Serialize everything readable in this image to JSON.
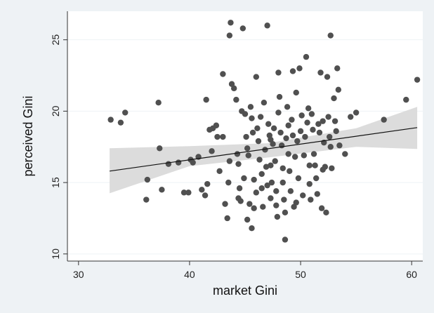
{
  "chart_data": {
    "type": "scatter",
    "xlabel": "market Gini",
    "ylabel": "perceived Gini",
    "xlim": [
      29,
      61
    ],
    "ylim": [
      9.5,
      27
    ],
    "x_ticks": [
      30,
      40,
      50,
      60
    ],
    "y_ticks": [
      10,
      15,
      20,
      25
    ],
    "x_tick_labels": [
      "30",
      "40",
      "50",
      "60"
    ],
    "y_tick_labels": [
      "10",
      "15",
      "20",
      "25"
    ],
    "grid": true,
    "colors": {
      "points": "#505050",
      "fit_line": "#111111",
      "ci_band": "#dcdcdc",
      "frame_bg": "#eef2f5",
      "plot_bg": "#ffffff",
      "gridline": "#eef2f5"
    },
    "fit_line": {
      "x": [
        32.8,
        60.5
      ],
      "y": [
        15.8,
        18.85
      ]
    },
    "ci_band": {
      "x": [
        32.8,
        40,
        47,
        55,
        60.5
      ],
      "upper": [
        17.4,
        17.55,
        17.75,
        18.8,
        20.3
      ],
      "lower": [
        14.25,
        16.15,
        16.75,
        17.5,
        17.35
      ]
    },
    "points": [
      [
        32.9,
        19.4
      ],
      [
        33.8,
        19.2
      ],
      [
        34.2,
        19.9
      ],
      [
        36.2,
        15.2
      ],
      [
        36.1,
        13.8
      ],
      [
        37.2,
        20.6
      ],
      [
        37.3,
        17.4
      ],
      [
        37.5,
        14.5
      ],
      [
        38.1,
        16.3
      ],
      [
        39.0,
        16.4
      ],
      [
        39.5,
        14.3
      ],
      [
        39.9,
        14.3
      ],
      [
        40.1,
        16.6
      ],
      [
        40.3,
        16.4
      ],
      [
        40.8,
        16.8
      ],
      [
        41.1,
        14.5
      ],
      [
        41.4,
        14.1
      ],
      [
        41.6,
        14.9
      ],
      [
        41.5,
        20.8
      ],
      [
        41.8,
        18.7
      ],
      [
        42.1,
        18.8
      ],
      [
        42.0,
        17.2
      ],
      [
        42.4,
        19.0
      ],
      [
        42.5,
        18.2
      ],
      [
        42.7,
        15.8
      ],
      [
        43.0,
        22.6
      ],
      [
        43.2,
        13.5
      ],
      [
        43.4,
        12.5
      ],
      [
        43.5,
        15.0
      ],
      [
        43.6,
        16.5
      ],
      [
        43.6,
        25.3
      ],
      [
        43.7,
        26.2
      ],
      [
        43.8,
        21.9
      ],
      [
        44.0,
        21.6
      ],
      [
        44.2,
        20.8
      ],
      [
        44.3,
        17.0
      ],
      [
        44.4,
        16.3
      ],
      [
        44.5,
        14.6
      ],
      [
        44.6,
        13.7
      ],
      [
        44.7,
        20.0
      ],
      [
        44.8,
        25.8
      ],
      [
        44.9,
        15.3
      ],
      [
        45.0,
        19.8
      ],
      [
        45.1,
        18.2
      ],
      [
        45.2,
        17.4
      ],
      [
        45.3,
        16.9
      ],
      [
        45.4,
        13.5
      ],
      [
        45.5,
        20.3
      ],
      [
        45.6,
        19.5
      ],
      [
        45.7,
        18.5
      ],
      [
        45.8,
        15.2
      ],
      [
        45.8,
        13.2
      ],
      [
        45.6,
        11.8
      ],
      [
        46.0,
        22.4
      ],
      [
        46.1,
        18.8
      ],
      [
        46.2,
        17.9
      ],
      [
        46.3,
        16.6
      ],
      [
        46.4,
        19.6
      ],
      [
        46.5,
        15.6
      ],
      [
        46.5,
        14.6
      ],
      [
        46.6,
        13.3
      ],
      [
        46.7,
        20.6
      ],
      [
        46.8,
        17.3
      ],
      [
        46.9,
        16.1
      ],
      [
        47.0,
        14.8
      ],
      [
        47.0,
        26.0
      ],
      [
        47.1,
        19.1
      ],
      [
        47.2,
        18.3
      ],
      [
        47.3,
        16.2
      ],
      [
        47.3,
        13.9
      ],
      [
        47.4,
        15.0
      ],
      [
        47.5,
        17.7
      ],
      [
        47.6,
        18.8
      ],
      [
        47.7,
        16.5
      ],
      [
        47.8,
        14.4
      ],
      [
        47.8,
        13.4
      ],
      [
        47.9,
        12.6
      ],
      [
        48.0,
        19.9
      ],
      [
        48.0,
        22.7
      ],
      [
        48.1,
        21.0
      ],
      [
        48.2,
        18.5
      ],
      [
        48.3,
        17.6
      ],
      [
        48.4,
        16.0
      ],
      [
        48.4,
        15.0
      ],
      [
        48.5,
        13.8
      ],
      [
        48.6,
        12.9
      ],
      [
        48.6,
        11.0
      ],
      [
        48.7,
        18.1
      ],
      [
        48.8,
        20.3
      ],
      [
        48.9,
        17.0
      ],
      [
        49.0,
        15.8
      ],
      [
        49.1,
        14.4
      ],
      [
        49.2,
        19.4
      ],
      [
        49.3,
        22.8
      ],
      [
        49.3,
        18.3
      ],
      [
        49.4,
        13.3
      ],
      [
        49.5,
        16.8
      ],
      [
        49.6,
        21.3
      ],
      [
        49.7,
        17.9
      ],
      [
        49.8,
        15.3
      ],
      [
        49.9,
        23.0
      ],
      [
        50.0,
        18.6
      ],
      [
        50.1,
        19.7
      ],
      [
        50.2,
        14.1
      ],
      [
        50.3,
        16.9
      ],
      [
        50.4,
        18.2
      ],
      [
        50.5,
        23.8
      ],
      [
        50.6,
        19.2
      ],
      [
        50.7,
        20.2
      ],
      [
        50.8,
        16.2
      ],
      [
        50.9,
        13.8
      ],
      [
        51.0,
        19.8
      ],
      [
        51.1,
        18.7
      ],
      [
        51.2,
        17.0
      ],
      [
        51.3,
        16.2
      ],
      [
        51.4,
        15.3
      ],
      [
        51.5,
        14.2
      ],
      [
        51.6,
        19.1
      ],
      [
        51.7,
        18.5
      ],
      [
        51.8,
        22.7
      ],
      [
        51.9,
        13.2
      ],
      [
        52.0,
        19.3
      ],
      [
        52.1,
        17.8
      ],
      [
        52.2,
        16.1
      ],
      [
        52.3,
        12.9
      ],
      [
        52.4,
        22.4
      ],
      [
        52.5,
        19.6
      ],
      [
        52.6,
        18.2
      ],
      [
        52.7,
        17.5
      ],
      [
        52.7,
        25.3
      ],
      [
        52.8,
        16.0
      ],
      [
        53.0,
        20.9
      ],
      [
        53.1,
        19.3
      ],
      [
        53.2,
        18.6
      ],
      [
        53.3,
        23.0
      ],
      [
        53.4,
        21.5
      ],
      [
        53.5,
        17.6
      ],
      [
        54.0,
        17.0
      ],
      [
        54.5,
        19.6
      ],
      [
        55.0,
        19.9
      ],
      [
        57.5,
        19.4
      ],
      [
        59.5,
        20.8
      ],
      [
        60.5,
        22.2
      ],
      [
        44.4,
        13.9
      ],
      [
        46.0,
        14.3
      ],
      [
        47.3,
        18.0
      ],
      [
        48.9,
        19.0
      ],
      [
        50.8,
        14.9
      ],
      [
        52.0,
        15.9
      ],
      [
        45.2,
        12.4
      ],
      [
        43.0,
        18.2
      ],
      [
        49.6,
        13.6
      ]
    ]
  }
}
